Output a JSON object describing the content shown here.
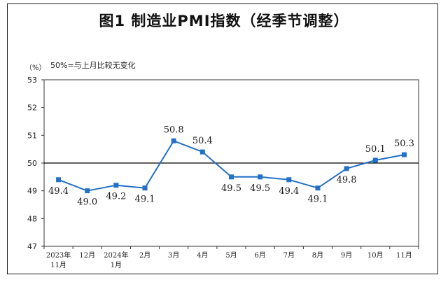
{
  "title": "图1  制造业PMI指数（经季节调整）",
  "unit": "（%）",
  "note": "50%=与上月比较无变化",
  "colors": {
    "line": "#2271c6",
    "marker": "#2271c6",
    "axis": "#333333",
    "ref_line": "#000000"
  },
  "chart_data": {
    "type": "line",
    "title": "图1  制造业PMI指数（经季节调整）",
    "ylabel": "（%）",
    "xlabel": "",
    "ylim": [
      47,
      53
    ],
    "yticks": [
      47,
      48,
      49,
      50,
      51,
      52,
      53
    ],
    "reference_line": 50,
    "grid": false,
    "categories": [
      [
        "2023年",
        "11月"
      ],
      [
        "12月"
      ],
      [
        "2024年",
        "1月"
      ],
      [
        "2月"
      ],
      [
        "3月"
      ],
      [
        "4月"
      ],
      [
        "5月"
      ],
      [
        "6月"
      ],
      [
        "7月"
      ],
      [
        "8月"
      ],
      [
        "9月"
      ],
      [
        "10月"
      ],
      [
        "11月"
      ]
    ],
    "series": [
      {
        "values": [
          49.4,
          49.0,
          49.2,
          49.1,
          50.8,
          50.4,
          49.5,
          49.5,
          49.4,
          49.1,
          49.8,
          50.1,
          50.3
        ]
      }
    ],
    "data_labels": [
      "49.4",
      "49.0",
      "49.2",
      "49.1",
      "50.8",
      "50.4",
      "49.5",
      "49.5",
      "49.4",
      "49.1",
      "49.8",
      "50.1",
      "50.3"
    ]
  }
}
